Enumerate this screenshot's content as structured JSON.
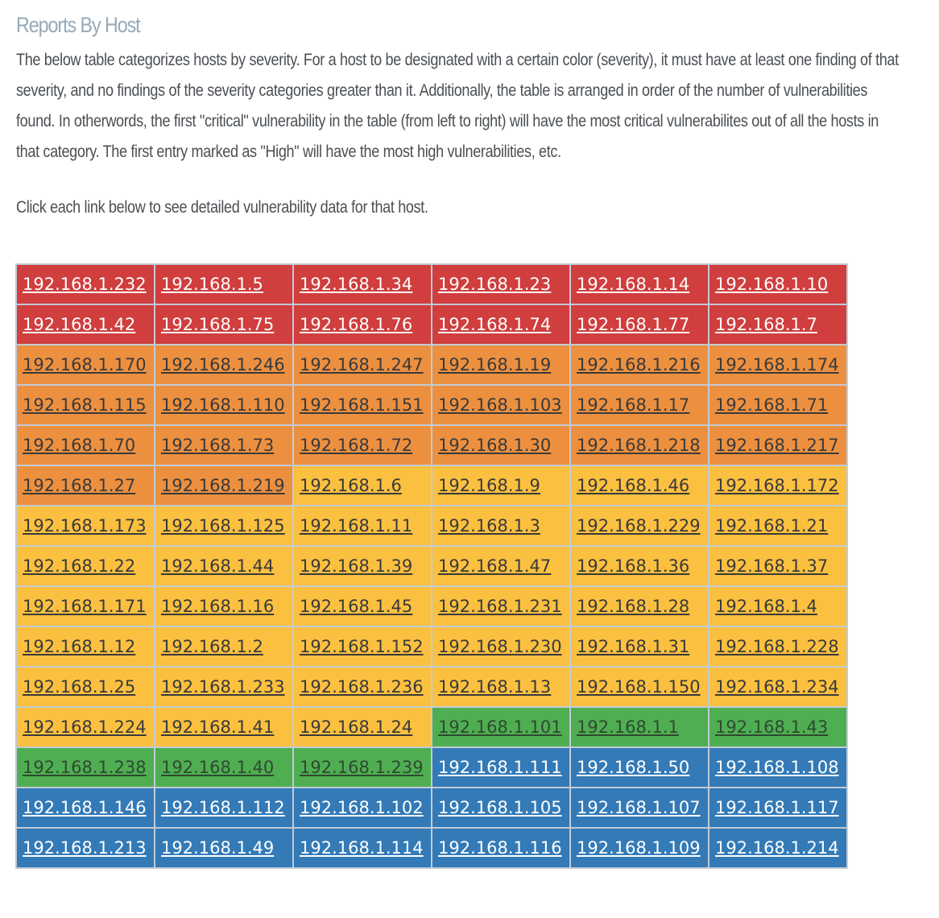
{
  "title": "Reports By Host",
  "description": "The below table categorizes hosts by severity. For a host to be designated with a certain color (severity), it must have at least one finding of that severity, and no findings of the severity categories greater than it. Additionally, the table is arranged in order of the number of vulnerabilities found. In otherwords, the first \"critical\" vulnerability in the table (from left to right) will have the most critical vulnerabilites out of all the hosts in that category. The first entry marked as \"High\" will have the most high vulnerabilities, etc.",
  "note": "Click each link below to see detailed vulnerability data for that host.",
  "colors": {
    "critical": "#d03e3e",
    "high": "#ec9040",
    "medium": "#fbc040",
    "low": "#4fae52",
    "info": "#337ab7"
  },
  "hosts": [
    {
      "ip": "192.168.1.232",
      "severity": "critical"
    },
    {
      "ip": "192.168.1.5",
      "severity": "critical"
    },
    {
      "ip": "192.168.1.34",
      "severity": "critical"
    },
    {
      "ip": "192.168.1.23",
      "severity": "critical"
    },
    {
      "ip": "192.168.1.14",
      "severity": "critical"
    },
    {
      "ip": "192.168.1.10",
      "severity": "critical"
    },
    {
      "ip": "192.168.1.42",
      "severity": "critical"
    },
    {
      "ip": "192.168.1.75",
      "severity": "critical"
    },
    {
      "ip": "192.168.1.76",
      "severity": "critical"
    },
    {
      "ip": "192.168.1.74",
      "severity": "critical"
    },
    {
      "ip": "192.168.1.77",
      "severity": "critical"
    },
    {
      "ip": "192.168.1.7",
      "severity": "critical"
    },
    {
      "ip": "192.168.1.170",
      "severity": "high"
    },
    {
      "ip": "192.168.1.246",
      "severity": "high"
    },
    {
      "ip": "192.168.1.247",
      "severity": "high"
    },
    {
      "ip": "192.168.1.19",
      "severity": "high"
    },
    {
      "ip": "192.168.1.216",
      "severity": "high"
    },
    {
      "ip": "192.168.1.174",
      "severity": "high"
    },
    {
      "ip": "192.168.1.115",
      "severity": "high"
    },
    {
      "ip": "192.168.1.110",
      "severity": "high"
    },
    {
      "ip": "192.168.1.151",
      "severity": "high"
    },
    {
      "ip": "192.168.1.103",
      "severity": "high"
    },
    {
      "ip": "192.168.1.17",
      "severity": "high"
    },
    {
      "ip": "192.168.1.71",
      "severity": "high"
    },
    {
      "ip": "192.168.1.70",
      "severity": "high"
    },
    {
      "ip": "192.168.1.73",
      "severity": "high"
    },
    {
      "ip": "192.168.1.72",
      "severity": "high"
    },
    {
      "ip": "192.168.1.30",
      "severity": "high"
    },
    {
      "ip": "192.168.1.218",
      "severity": "high"
    },
    {
      "ip": "192.168.1.217",
      "severity": "high"
    },
    {
      "ip": "192.168.1.27",
      "severity": "high"
    },
    {
      "ip": "192.168.1.219",
      "severity": "high"
    },
    {
      "ip": "192.168.1.6",
      "severity": "medium"
    },
    {
      "ip": "192.168.1.9",
      "severity": "medium"
    },
    {
      "ip": "192.168.1.46",
      "severity": "medium"
    },
    {
      "ip": "192.168.1.172",
      "severity": "medium"
    },
    {
      "ip": "192.168.1.173",
      "severity": "medium"
    },
    {
      "ip": "192.168.1.125",
      "severity": "medium"
    },
    {
      "ip": "192.168.1.11",
      "severity": "medium"
    },
    {
      "ip": "192.168.1.3",
      "severity": "medium"
    },
    {
      "ip": "192.168.1.229",
      "severity": "medium"
    },
    {
      "ip": "192.168.1.21",
      "severity": "medium"
    },
    {
      "ip": "192.168.1.22",
      "severity": "medium"
    },
    {
      "ip": "192.168.1.44",
      "severity": "medium"
    },
    {
      "ip": "192.168.1.39",
      "severity": "medium"
    },
    {
      "ip": "192.168.1.47",
      "severity": "medium"
    },
    {
      "ip": "192.168.1.36",
      "severity": "medium"
    },
    {
      "ip": "192.168.1.37",
      "severity": "medium"
    },
    {
      "ip": "192.168.1.171",
      "severity": "medium"
    },
    {
      "ip": "192.168.1.16",
      "severity": "medium"
    },
    {
      "ip": "192.168.1.45",
      "severity": "medium"
    },
    {
      "ip": "192.168.1.231",
      "severity": "medium"
    },
    {
      "ip": "192.168.1.28",
      "severity": "medium"
    },
    {
      "ip": "192.168.1.4",
      "severity": "medium"
    },
    {
      "ip": "192.168.1.12",
      "severity": "medium"
    },
    {
      "ip": "192.168.1.2",
      "severity": "medium"
    },
    {
      "ip": "192.168.1.152",
      "severity": "medium"
    },
    {
      "ip": "192.168.1.230",
      "severity": "medium"
    },
    {
      "ip": "192.168.1.31",
      "severity": "medium"
    },
    {
      "ip": "192.168.1.228",
      "severity": "medium"
    },
    {
      "ip": "192.168.1.25",
      "severity": "medium"
    },
    {
      "ip": "192.168.1.233",
      "severity": "medium"
    },
    {
      "ip": "192.168.1.236",
      "severity": "medium"
    },
    {
      "ip": "192.168.1.13",
      "severity": "medium"
    },
    {
      "ip": "192.168.1.150",
      "severity": "medium"
    },
    {
      "ip": "192.168.1.234",
      "severity": "medium"
    },
    {
      "ip": "192.168.1.224",
      "severity": "medium"
    },
    {
      "ip": "192.168.1.41",
      "severity": "medium"
    },
    {
      "ip": "192.168.1.24",
      "severity": "medium"
    },
    {
      "ip": "192.168.1.101",
      "severity": "low"
    },
    {
      "ip": "192.168.1.1",
      "severity": "low"
    },
    {
      "ip": "192.168.1.43",
      "severity": "low"
    },
    {
      "ip": "192.168.1.238",
      "severity": "low"
    },
    {
      "ip": "192.168.1.40",
      "severity": "low"
    },
    {
      "ip": "192.168.1.239",
      "severity": "low"
    },
    {
      "ip": "192.168.1.111",
      "severity": "info"
    },
    {
      "ip": "192.168.1.50",
      "severity": "info"
    },
    {
      "ip": "192.168.1.108",
      "severity": "info"
    },
    {
      "ip": "192.168.1.146",
      "severity": "info"
    },
    {
      "ip": "192.168.1.112",
      "severity": "info"
    },
    {
      "ip": "192.168.1.102",
      "severity": "info"
    },
    {
      "ip": "192.168.1.105",
      "severity": "info"
    },
    {
      "ip": "192.168.1.107",
      "severity": "info"
    },
    {
      "ip": "192.168.1.117",
      "severity": "info"
    },
    {
      "ip": "192.168.1.213",
      "severity": "info"
    },
    {
      "ip": "192.168.1.49",
      "severity": "info"
    },
    {
      "ip": "192.168.1.114",
      "severity": "info"
    },
    {
      "ip": "192.168.1.116",
      "severity": "info"
    },
    {
      "ip": "192.168.1.109",
      "severity": "info"
    },
    {
      "ip": "192.168.1.214",
      "severity": "info"
    }
  ]
}
